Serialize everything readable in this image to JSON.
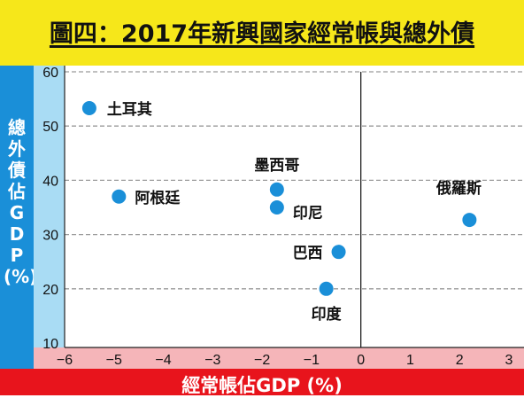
{
  "header": {
    "title": "圖四：2017年新興國家經常帳與總外債"
  },
  "colors": {
    "title_band": "#f6e71a",
    "y_band": "#1a8fd8",
    "y_axis_strip": "#a9dcf4",
    "x_band": "#e8141c",
    "x_axis_strip": "#f5b5b9",
    "point": "#1a8fd8",
    "grid": "#9a9a9a"
  },
  "chart_data": {
    "type": "scatter",
    "title": "圖四：2017年新興國家經常帳與總外債",
    "xlabel": "經常帳佔GDP (%)",
    "ylabel": "總外債佔GDP(%)",
    "xlim": [
      -6,
      3
    ],
    "ylim": [
      10,
      60
    ],
    "x_ticks": [
      "−6",
      "−5",
      "−4",
      "−3",
      "−2",
      "−1",
      "0",
      "1",
      "2",
      "3"
    ],
    "y_ticks": [
      "10",
      "20",
      "30",
      "40",
      "50",
      "60"
    ],
    "grid": "horizontal dashed",
    "points": [
      {
        "label": "土耳其",
        "x": -5.5,
        "y": 53.3
      },
      {
        "label": "阿根廷",
        "x": -4.9,
        "y": 37.0
      },
      {
        "label": "墨西哥",
        "x": -1.7,
        "y": 38.3
      },
      {
        "label": "印尼",
        "x": -1.7,
        "y": 35.0
      },
      {
        "label": "巴西",
        "x": -0.45,
        "y": 26.8
      },
      {
        "label": "印度",
        "x": -0.7,
        "y": 20.0
      },
      {
        "label": "俄羅斯",
        "x": 2.2,
        "y": 32.7
      }
    ]
  }
}
